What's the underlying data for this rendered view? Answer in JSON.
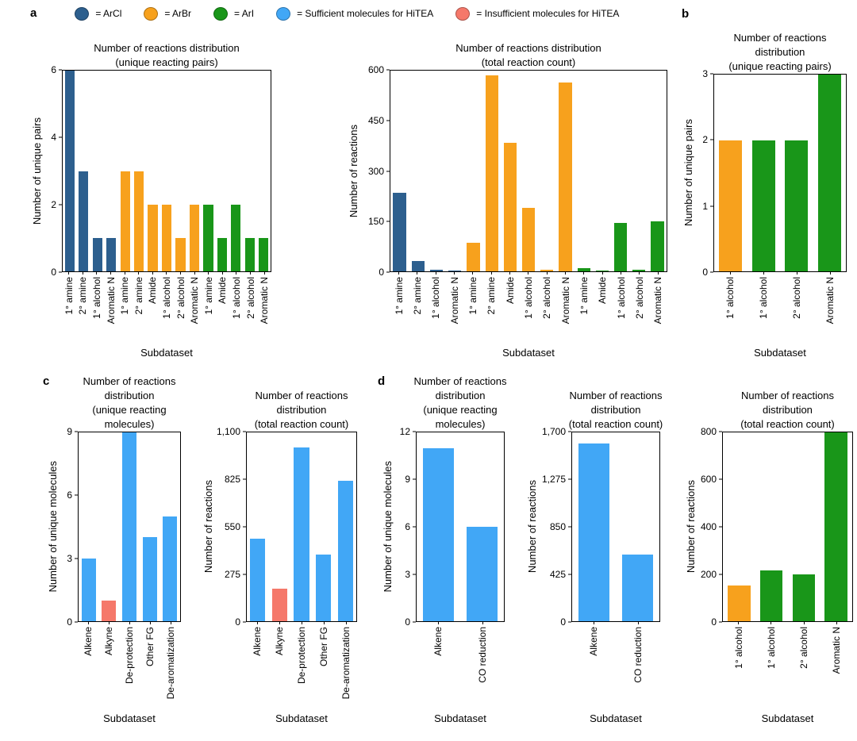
{
  "panel_labels": {
    "a": "a",
    "b": "b",
    "c": "c",
    "d": "d"
  },
  "palette": {
    "ArCl": "#2d5f8e",
    "ArBr": "#f7a11d",
    "ArI": "#199619",
    "sufficient": "#41a7f6",
    "insufficient": "#f5786a"
  },
  "legend": {
    "items": [
      {
        "key": "ArCl",
        "label": "= ArCl"
      },
      {
        "key": "ArBr",
        "label": "= ArBr"
      },
      {
        "key": "ArI",
        "label": "= ArI"
      },
      {
        "key": "sufficient",
        "label": "= Sufficient molecules for HiTEA"
      },
      {
        "key": "insufficient",
        "label": "= Insufficient molecules for HiTEA"
      }
    ]
  },
  "chart_data": [
    {
      "id": "a-unique-pairs",
      "panel": "a",
      "type": "bar",
      "title": "Number of reactions distribution\n(unique reacting pairs)",
      "ylabel": "Number of unique pairs",
      "xlabel": "Subdataset",
      "ylim": [
        0,
        6
      ],
      "yticks": [
        {
          "v": 0,
          "label": "0"
        },
        {
          "v": 2,
          "label": "2"
        },
        {
          "v": 4,
          "label": "4"
        },
        {
          "v": 6,
          "label": "6"
        }
      ],
      "bars": [
        {
          "category": "1° amine",
          "value": 6,
          "color": "ArCl"
        },
        {
          "category": "2° amine",
          "value": 3,
          "color": "ArCl"
        },
        {
          "category": "1° alcohol",
          "value": 1,
          "color": "ArCl"
        },
        {
          "category": "Aromatic N",
          "value": 1,
          "color": "ArCl"
        },
        {
          "category": "1° amine",
          "value": 3,
          "color": "ArBr"
        },
        {
          "category": "2° amine",
          "value": 3,
          "color": "ArBr"
        },
        {
          "category": "Amide",
          "value": 2,
          "color": "ArBr"
        },
        {
          "category": "1° alcohol",
          "value": 2,
          "color": "ArBr"
        },
        {
          "category": "2° alcohol",
          "value": 1,
          "color": "ArBr"
        },
        {
          "category": "Aromatic N",
          "value": 2,
          "color": "ArBr"
        },
        {
          "category": "1° amine",
          "value": 2,
          "color": "ArI"
        },
        {
          "category": "Amide",
          "value": 1,
          "color": "ArI"
        },
        {
          "category": "1° alcohol",
          "value": 2,
          "color": "ArI"
        },
        {
          "category": "2° alcohol",
          "value": 1,
          "color": "ArI"
        },
        {
          "category": "Aromatic N",
          "value": 1,
          "color": "ArI"
        }
      ]
    },
    {
      "id": "a-total-count",
      "panel": "a",
      "type": "bar",
      "title": "Number of reactions distribution\n(total reaction count)",
      "ylabel": "Number of reactions",
      "xlabel": "Subdataset",
      "ylim": [
        0,
        600
      ],
      "yticks": [
        {
          "v": 0,
          "label": "0"
        },
        {
          "v": 150,
          "label": "150"
        },
        {
          "v": 300,
          "label": "300"
        },
        {
          "v": 450,
          "label": "450"
        },
        {
          "v": 600,
          "label": "600"
        }
      ],
      "bars": [
        {
          "category": "1° amine",
          "value": 235,
          "color": "ArCl"
        },
        {
          "category": "2° amine",
          "value": 30,
          "color": "ArCl"
        },
        {
          "category": "1° alcohol",
          "value": 5,
          "color": "ArCl"
        },
        {
          "category": "Aromatic N",
          "value": 3,
          "color": "ArCl"
        },
        {
          "category": "1° amine",
          "value": 85,
          "color": "ArBr"
        },
        {
          "category": "2° amine",
          "value": 585,
          "color": "ArBr"
        },
        {
          "category": "Amide",
          "value": 385,
          "color": "ArBr"
        },
        {
          "category": "1° alcohol",
          "value": 190,
          "color": "ArBr"
        },
        {
          "category": "2° alcohol",
          "value": 5,
          "color": "ArBr"
        },
        {
          "category": "Aromatic N",
          "value": 565,
          "color": "ArBr"
        },
        {
          "category": "1° amine",
          "value": 10,
          "color": "ArI"
        },
        {
          "category": "Amide",
          "value": 3,
          "color": "ArI"
        },
        {
          "category": "1° alcohol",
          "value": 145,
          "color": "ArI"
        },
        {
          "category": "2° alcohol",
          "value": 5,
          "color": "ArI"
        },
        {
          "category": "Aromatic N",
          "value": 150,
          "color": "ArI"
        }
      ]
    },
    {
      "id": "b-unique-pairs",
      "panel": "b",
      "type": "bar",
      "title": "Number of reactions\ndistribution\n(unique reacting pairs)",
      "ylabel": "Number of unique pairs",
      "xlabel": "Subdataset",
      "ylim": [
        0,
        3
      ],
      "yticks": [
        {
          "v": 0,
          "label": "0"
        },
        {
          "v": 1,
          "label": "1"
        },
        {
          "v": 2,
          "label": "2"
        },
        {
          "v": 3,
          "label": "3"
        }
      ],
      "bars": [
        {
          "category": "1° alcohol",
          "value": 2,
          "color": "ArBr"
        },
        {
          "category": "1° alcohol",
          "value": 2,
          "color": "ArI"
        },
        {
          "category": "2° alcohol",
          "value": 2,
          "color": "ArI"
        },
        {
          "category": "Aromatic N",
          "value": 3,
          "color": "ArI"
        }
      ]
    },
    {
      "id": "c-unique-molecules",
      "panel": "c",
      "type": "bar",
      "title": "Number of reactions\ndistribution\n(unique reacting\nmolecules)",
      "ylabel": "Number of unique molecules",
      "xlabel": "Subdataset",
      "ylim": [
        0,
        9
      ],
      "yticks": [
        {
          "v": 0,
          "label": "0"
        },
        {
          "v": 3,
          "label": "3"
        },
        {
          "v": 6,
          "label": "6"
        },
        {
          "v": 9,
          "label": "9"
        }
      ],
      "bars": [
        {
          "category": "Alkene",
          "value": 3,
          "color": "sufficient"
        },
        {
          "category": "Alkyne",
          "value": 1,
          "color": "insufficient"
        },
        {
          "category": "De-protection",
          "value": 9,
          "color": "sufficient"
        },
        {
          "category": "Other FG",
          "value": 4,
          "color": "sufficient"
        },
        {
          "category": "De-aromatization",
          "value": 5,
          "color": "sufficient"
        }
      ]
    },
    {
      "id": "c-total-count",
      "panel": "c",
      "type": "bar",
      "title": "Number of reactions\ndistribution\n(total reaction count)",
      "ylabel": "Number of reactions",
      "xlabel": "Subdataset",
      "ylim": [
        0,
        1100
      ],
      "yticks": [
        {
          "v": 0,
          "label": "0"
        },
        {
          "v": 275,
          "label": "275"
        },
        {
          "v": 550,
          "label": "550"
        },
        {
          "v": 825,
          "label": "825"
        },
        {
          "v": 1100,
          "label": "1,100"
        }
      ],
      "bars": [
        {
          "category": "Alkene",
          "value": 480,
          "color": "sufficient"
        },
        {
          "category": "Alkyne",
          "value": 190,
          "color": "insufficient"
        },
        {
          "category": "De-protection",
          "value": 1010,
          "color": "sufficient"
        },
        {
          "category": "Other FG",
          "value": 390,
          "color": "sufficient"
        },
        {
          "category": "De-aromatization",
          "value": 820,
          "color": "sufficient"
        }
      ]
    },
    {
      "id": "d-unique-molecules",
      "panel": "d",
      "type": "bar",
      "title": "Number of reactions\ndistribution\n(unique reacting\nmolecules)",
      "ylabel": "Number of unique molecules",
      "xlabel": "Subdataset",
      "ylim": [
        0,
        12
      ],
      "yticks": [
        {
          "v": 0,
          "label": "0"
        },
        {
          "v": 3,
          "label": "3"
        },
        {
          "v": 6,
          "label": "6"
        },
        {
          "v": 9,
          "label": "9"
        },
        {
          "v": 12,
          "label": "12"
        }
      ],
      "bars": [
        {
          "category": "Alkene",
          "value": 11,
          "color": "sufficient"
        },
        {
          "category": "CO reduction",
          "value": 6,
          "color": "sufficient"
        }
      ]
    },
    {
      "id": "d-total-count",
      "panel": "d",
      "type": "bar",
      "title": "Number of reactions\ndistribution\n(total reaction count)",
      "ylabel": "Number of reactions",
      "xlabel": "Subdataset",
      "ylim": [
        0,
        1700
      ],
      "yticks": [
        {
          "v": 0,
          "label": "0"
        },
        {
          "v": 425,
          "label": "425"
        },
        {
          "v": 850,
          "label": "850"
        },
        {
          "v": 1275,
          "label": "1,275"
        },
        {
          "v": 1700,
          "label": "1,700"
        }
      ],
      "bars": [
        {
          "category": "Alkene",
          "value": 1600,
          "color": "sufficient"
        },
        {
          "category": "CO reduction",
          "value": 600,
          "color": "sufficient"
        }
      ]
    },
    {
      "id": "b-total-count",
      "panel": "b",
      "type": "bar",
      "title": "Number of reactions\ndistribution\n(total reaction count)",
      "ylabel": "Number of reactions",
      "xlabel": "Subdataset",
      "ylim": [
        0,
        800
      ],
      "yticks": [
        {
          "v": 0,
          "label": "0"
        },
        {
          "v": 200,
          "label": "200"
        },
        {
          "v": 400,
          "label": "400"
        },
        {
          "v": 600,
          "label": "600"
        },
        {
          "v": 800,
          "label": "800"
        }
      ],
      "bars": [
        {
          "category": "1° alcohol",
          "value": 150,
          "color": "ArBr"
        },
        {
          "category": "1° alcohol",
          "value": 215,
          "color": "ArI"
        },
        {
          "category": "2° alcohol",
          "value": 200,
          "color": "ArI"
        },
        {
          "category": "Aromatic N",
          "value": 800,
          "color": "ArI"
        }
      ]
    }
  ]
}
